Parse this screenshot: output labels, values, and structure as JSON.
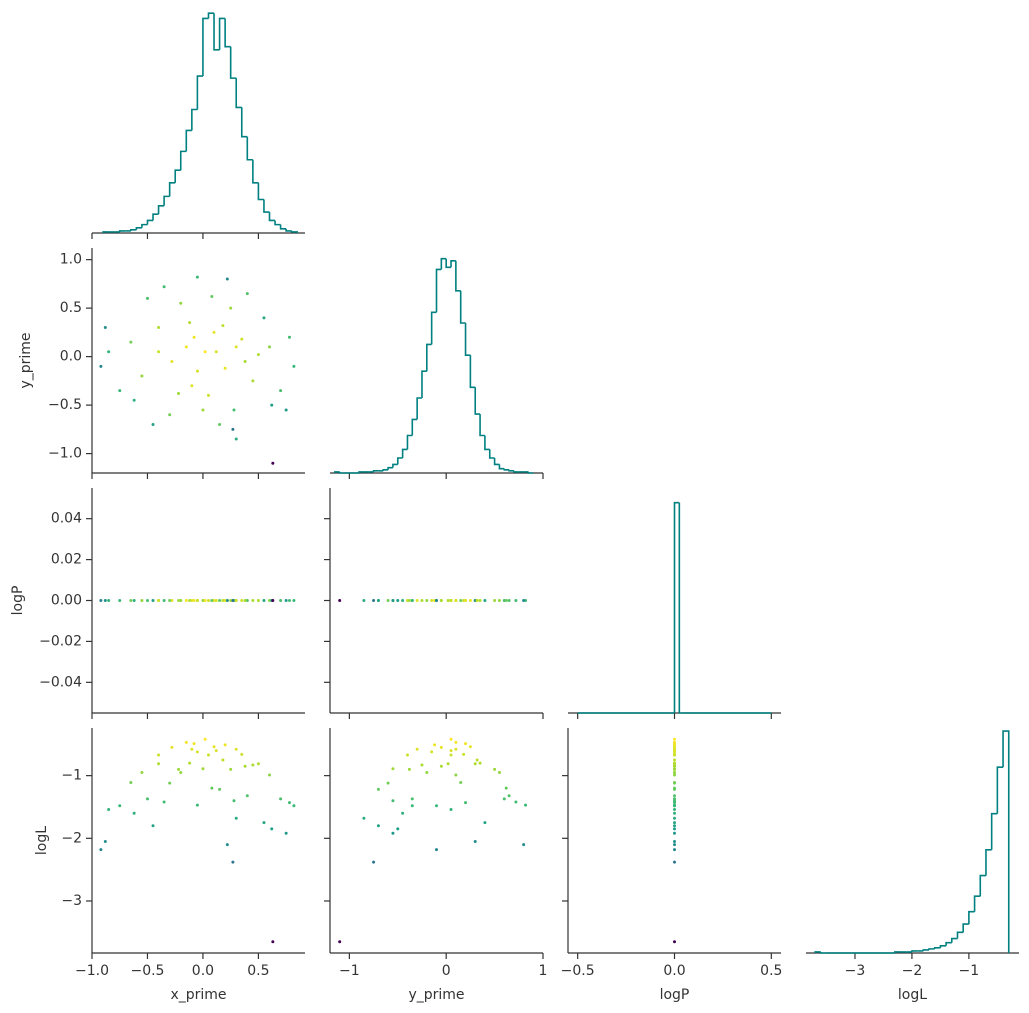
{
  "chart_data": {
    "type": "corner",
    "color": "#008080",
    "colormap": "viridis",
    "variables": [
      {
        "name": "x_prime",
        "xlim": [
          -1.0,
          0.92
        ],
        "xticks": [
          {
            "value": -1.0,
            "label": "−1.0"
          },
          {
            "value": -0.5,
            "label": "−0.5"
          },
          {
            "value": 0,
            "label": "0.0"
          },
          0.5
        ],
        "histogram": {
          "bins": [
            -0.9,
            -0.85,
            -0.8,
            -0.75,
            -0.7,
            -0.65,
            -0.6,
            -0.55,
            -0.5,
            -0.45,
            -0.4,
            -0.35,
            -0.3,
            -0.25,
            -0.2,
            -0.15,
            -0.1,
            -0.05,
            0,
            0.05,
            0.1,
            0.15,
            0.2,
            0.25,
            0.3,
            0.35,
            0.4,
            0.45,
            0.5,
            0.55,
            0.6,
            0.65,
            0.7,
            0.75,
            0.8,
            0.85
          ],
          "counts": [
            1,
            1,
            1,
            2,
            2,
            3,
            5,
            8,
            12,
            18,
            26,
            35,
            48,
            60,
            78,
            98,
            118,
            150,
            205,
            210,
            175,
            205,
            178,
            148,
            120,
            92,
            70,
            48,
            32,
            20,
            12,
            8,
            4,
            2,
            1
          ],
          "ylim": [
            0,
            215
          ]
        },
        "values": [
          0.02,
          -0.15,
          0.2,
          0.1,
          -0.28,
          0.35,
          -0.1,
          0.05,
          -0.4,
          0.45,
          -0.55,
          0.25,
          -0.2,
          0.6,
          -0.65,
          0.7,
          -0.3,
          0.15,
          -0.75,
          0.78,
          -0.05,
          0.4,
          -0.5,
          -0.85,
          0.82,
          0.3,
          -0.92,
          -0.88,
          0.28,
          -0.12,
          0.55,
          -0.35,
          0.12,
          -0.05,
          0.18,
          -0.22,
          0.38,
          0.62,
          -0.62,
          0.08,
          0.22,
          -0.4,
          0.5,
          0.0,
          0.3,
          -0.08,
          0.75,
          -0.45,
          0.27,
          0.63
        ]
      },
      {
        "name": "y_prime",
        "xlim": [
          -1.2,
          1.0
        ],
        "ylim": [
          -1.2,
          1.12
        ],
        "xticks": [
          {
            "value": -1,
            "label": "−1"
          },
          0,
          1
        ],
        "yticks": [
          {
            "value": 1.0,
            "label": "1.0"
          },
          0.5,
          {
            "value": 0,
            "label": "0.0"
          },
          {
            "value": -0.5,
            "label": "−0.5"
          },
          {
            "value": -1.0,
            "label": "−1.0"
          }
        ],
        "histogram": {
          "bins": [
            -1.15,
            -1.1,
            -1.05,
            -1.0,
            -0.95,
            -0.9,
            -0.85,
            -0.8,
            -0.75,
            -0.7,
            -0.65,
            -0.6,
            -0.55,
            -0.5,
            -0.45,
            -0.4,
            -0.35,
            -0.3,
            -0.25,
            -0.2,
            -0.15,
            -0.1,
            -0.05,
            0,
            0.05,
            0.1,
            0.15,
            0.2,
            0.25,
            0.3,
            0.35,
            0.4,
            0.45,
            0.5,
            0.55,
            0.6,
            0.65,
            0.7,
            0.75,
            0.8,
            0.85,
            0.9
          ],
          "counts": [
            1,
            0,
            0,
            0,
            0,
            1,
            1,
            1,
            2,
            2,
            3,
            5,
            8,
            14,
            22,
            35,
            50,
            70,
            95,
            120,
            150,
            190,
            200,
            192,
            198,
            170,
            140,
            110,
            80,
            55,
            35,
            22,
            14,
            8,
            4,
            3,
            2,
            1,
            1,
            1,
            0
          ],
          "ylim": [
            0,
            210
          ]
        },
        "values": [
          0.05,
          0.1,
          -0.12,
          0.25,
          -0.05,
          0.18,
          -0.3,
          -0.4,
          0.3,
          -0.25,
          -0.2,
          0.5,
          0.55,
          0.1,
          0.15,
          -0.35,
          -0.6,
          -0.7,
          -0.35,
          0.2,
          0.82,
          0.65,
          0.6,
          0.05,
          -0.1,
          -0.85,
          -0.1,
          0.3,
          -0.55,
          0.35,
          0.4,
          0.72,
          0.05,
          -0.15,
          0.32,
          -0.38,
          -0.05,
          -0.5,
          -0.45,
          0.62,
          0.8,
          0.05,
          0.02,
          -0.55,
          0.1,
          0.2,
          -0.55,
          -0.7,
          -0.75,
          -1.1
        ]
      },
      {
        "name": "logP",
        "xlim": [
          -0.55,
          0.55
        ],
        "ylim": [
          -0.055,
          0.055
        ],
        "xticks": [
          {
            "value": -0.5,
            "label": "−0.5"
          },
          {
            "value": 0,
            "label": "0.0"
          },
          0.5
        ],
        "yticks": [
          0.04,
          0.02,
          {
            "value": 0,
            "label": "0.00"
          },
          {
            "value": -0.02,
            "label": "−0.02"
          },
          {
            "value": -0.04,
            "label": "−0.04"
          }
        ],
        "histogram": {
          "bins": [
            -0.5,
            -0.475,
            -0.45,
            -0.425,
            -0.4,
            -0.375,
            -0.35,
            -0.325,
            -0.3,
            -0.275,
            -0.25,
            -0.225,
            -0.2,
            -0.175,
            -0.15,
            -0.125,
            -0.1,
            -0.075,
            -0.05,
            -0.025,
            0,
            0.025,
            0.05,
            0.075,
            0.1,
            0.125,
            0.15,
            0.175,
            0.2,
            0.225,
            0.25,
            0.275,
            0.3,
            0.325,
            0.35,
            0.375,
            0.4,
            0.425,
            0.45,
            0.475,
            0.5
          ],
          "counts": [
            0,
            0,
            0,
            0,
            0,
            0,
            0,
            0,
            0,
            0,
            0,
            0,
            0,
            0,
            0,
            0,
            0,
            0,
            0,
            0,
            1,
            0,
            0,
            0,
            0,
            0,
            0,
            0,
            0,
            0,
            0,
            0,
            0,
            0,
            0,
            0,
            0,
            0,
            0,
            0
          ],
          "ylim": [
            0,
            1.07
          ]
        },
        "values": [
          0,
          0,
          0,
          0,
          0,
          0,
          0,
          0,
          0,
          0,
          0,
          0,
          0,
          0,
          0,
          0,
          0,
          0,
          0,
          0,
          0,
          0,
          0,
          0,
          0,
          0,
          0,
          0,
          0,
          0,
          0,
          0,
          0,
          0,
          0,
          0,
          0,
          0,
          0,
          0,
          0,
          0,
          0,
          0,
          0,
          0,
          0,
          0,
          0,
          0
        ]
      },
      {
        "name": "logL",
        "xlim": [
          -3.86,
          -0.12
        ],
        "ylim": [
          -3.83,
          -0.24
        ],
        "xticks": [
          {
            "value": -3,
            "label": "−3"
          },
          {
            "value": -2,
            "label": "−2"
          },
          {
            "value": -1,
            "label": "−1"
          }
        ],
        "yticks": [
          {
            "value": -1,
            "label": "−1"
          },
          {
            "value": -2,
            "label": "−2"
          },
          {
            "value": -3,
            "label": "−3"
          }
        ],
        "histogram": {
          "bins": [
            -3.7,
            -3.6,
            -3.5,
            -3.4,
            -3.3,
            -3.2,
            -3.1,
            -3.0,
            -2.9,
            -2.8,
            -2.7,
            -2.6,
            -2.5,
            -2.4,
            -2.3,
            -2.2,
            -2.1,
            -2.0,
            -1.9,
            -1.8,
            -1.7,
            -1.6,
            -1.5,
            -1.4,
            -1.3,
            -1.2,
            -1.1,
            -1.0,
            -0.9,
            -0.8,
            -0.7,
            -0.6,
            -0.5,
            -0.4,
            -0.3
          ],
          "counts": [
            1,
            0,
            0,
            0,
            0,
            0,
            0,
            0,
            0,
            0,
            0,
            0,
            0,
            0,
            1,
            1,
            1,
            2,
            2,
            3,
            4,
            5,
            7,
            10,
            14,
            20,
            28,
            40,
            55,
            75,
            100,
            135,
            180,
            215
          ],
          "ylim": [
            0,
            218
          ]
        },
        "values": [
          -0.42,
          -0.47,
          -0.51,
          -0.54,
          -0.55,
          -0.66,
          -0.58,
          -0.67,
          -0.81,
          -0.83,
          -0.95,
          -0.9,
          -0.95,
          -0.99,
          -1.11,
          -1.37,
          -1.12,
          -1.22,
          -1.48,
          -1.43,
          -1.47,
          -1.32,
          -1.37,
          -1.54,
          -1.48,
          -1.68,
          -2.18,
          -2.05,
          -1.4,
          -0.8,
          -1.75,
          -1.42,
          -0.6,
          -0.62,
          -0.75,
          -0.9,
          -0.85,
          -1.85,
          -1.6,
          -1.2,
          -2.1,
          -0.67,
          -0.81,
          -0.89,
          -0.58,
          -0.49,
          -1.92,
          -1.8,
          -2.38,
          -3.65
        ]
      }
    ]
  }
}
